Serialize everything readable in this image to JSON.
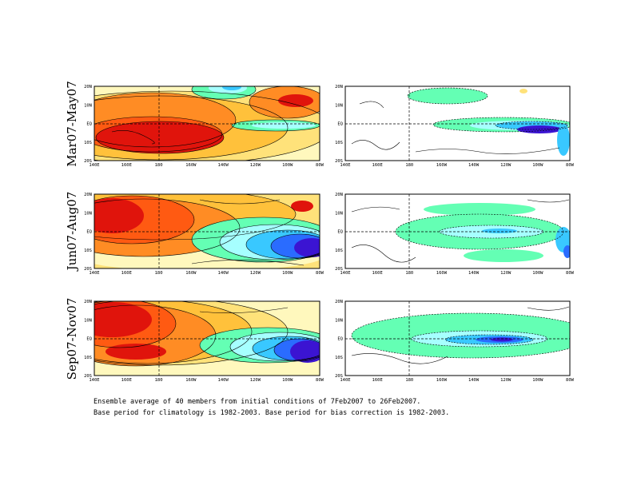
{
  "caption": {
    "line1": "Ensemble average of 40 members from initial conditions of 7Feb2007 to 26Feb2007.",
    "line2": "Base period for climatology is 1982-2003. Base period for bias correction is 1982-2003."
  },
  "rows": [
    {
      "label": "Mar07-May07"
    },
    {
      "label": "Jun07-Aug07"
    },
    {
      "label": "Sep07-Nov07"
    }
  ],
  "colors": {
    "warm": [
      "#fff8bd",
      "#ffe27a",
      "#ffc13b",
      "#ff8c24",
      "#ff5a12",
      "#e0140c"
    ],
    "cool": [
      "#64ffb4",
      "#a6ffff",
      "#39c8ff",
      "#2a6cff",
      "#3b14d2"
    ]
  },
  "chart_data": [
    {
      "type": "heatmap",
      "row_label": "Mar07-May07",
      "x_ticks": [
        "140E",
        "160E",
        "180",
        "160W",
        "140W",
        "120W",
        "100W",
        "80W"
      ],
      "y_ticks": [
        "20N",
        "10N",
        "EQ",
        "10S",
        "20S"
      ],
      "xlim": [
        "140E",
        "80W"
      ],
      "ylim": [
        "20S",
        "20N"
      ]
    },
    {
      "type": "heatmap",
      "row_label": "Mar07-May07",
      "x_ticks": [
        "140E",
        "160E",
        "180",
        "160W",
        "140W",
        "120W",
        "100W",
        "80W"
      ],
      "y_ticks": [
        "20N",
        "10N",
        "EQ",
        "10S",
        "20S"
      ],
      "xlim": [
        "140E",
        "80W"
      ],
      "ylim": [
        "20S",
        "20N"
      ]
    },
    {
      "type": "heatmap",
      "row_label": "Jun07-Aug07",
      "x_ticks": [
        "140E",
        "160E",
        "180",
        "160W",
        "140W",
        "120W",
        "100W",
        "80W"
      ],
      "y_ticks": [
        "20N",
        "10N",
        "EQ",
        "10S",
        "20S"
      ],
      "xlim": [
        "140E",
        "80W"
      ],
      "ylim": [
        "20S",
        "20N"
      ]
    },
    {
      "type": "heatmap",
      "row_label": "Jun07-Aug07",
      "x_ticks": [
        "140E",
        "160E",
        "180",
        "160W",
        "140W",
        "120W",
        "100W",
        "80W"
      ],
      "y_ticks": [
        "20N",
        "10N",
        "EQ",
        "10S",
        "20S"
      ],
      "xlim": [
        "140E",
        "80W"
      ],
      "ylim": [
        "20S",
        "20N"
      ]
    },
    {
      "type": "heatmap",
      "row_label": "Sep07-Nov07",
      "x_ticks": [
        "140E",
        "160E",
        "180",
        "160W",
        "140W",
        "120W",
        "100W",
        "80W"
      ],
      "y_ticks": [
        "20N",
        "10N",
        "EQ",
        "10S",
        "20S"
      ],
      "xlim": [
        "140E",
        "80W"
      ],
      "ylim": [
        "20S",
        "20N"
      ]
    },
    {
      "type": "heatmap",
      "row_label": "Sep07-Nov07",
      "x_ticks": [
        "140E",
        "160E",
        "180",
        "160W",
        "140W",
        "120W",
        "100W",
        "80W"
      ],
      "y_ticks": [
        "20N",
        "10N",
        "EQ",
        "10S",
        "20S"
      ],
      "xlim": [
        "140E",
        "80W"
      ],
      "ylim": [
        "20S",
        "20N"
      ]
    }
  ]
}
